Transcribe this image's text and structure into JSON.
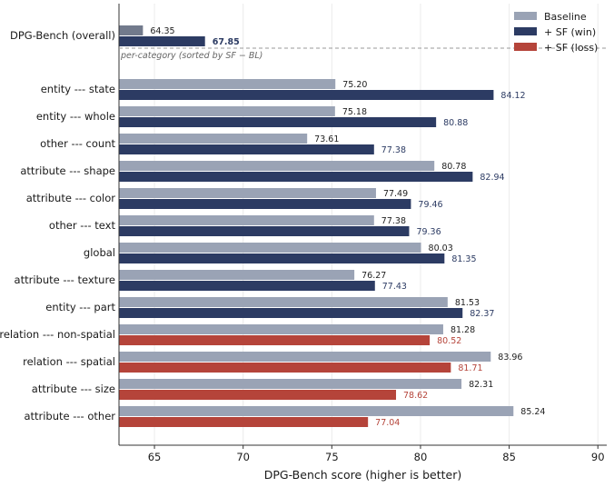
{
  "chart_data": {
    "type": "bar",
    "orientation": "horizontal",
    "xlabel": "DPG-Bench score (higher is better)",
    "xlim": [
      63,
      90.5
    ],
    "xticks": [
      65,
      70,
      75,
      80,
      85,
      90
    ],
    "grid": "vertical",
    "legend": {
      "placement": "top-right",
      "entries": [
        {
          "label": "Baseline",
          "color": "#9aa3b5"
        },
        {
          "label": "+ SF (win)",
          "color": "#2c3b63"
        },
        {
          "label": "+ SF (loss)",
          "color": "#b5443a"
        }
      ]
    },
    "overall": {
      "category": "DPG-Bench (overall)",
      "baseline": 64.35,
      "sf": 67.85,
      "baseline_color": "#727a8c"
    },
    "section_note": "per-category (sorted by SF − BL)",
    "categories": [
      "entity --- state",
      "entity --- whole",
      "other --- count",
      "attribute --- shape",
      "attribute --- color",
      "other --- text",
      "global",
      "attribute --- texture",
      "entity --- part",
      "relation --- non-spatial",
      "relation --- spatial",
      "attribute --- size",
      "attribute --- other"
    ],
    "series": [
      {
        "name": "Baseline",
        "values": [
          75.2,
          75.18,
          73.61,
          80.78,
          77.49,
          77.38,
          80.03,
          76.27,
          81.53,
          81.28,
          83.96,
          82.31,
          85.24
        ]
      },
      {
        "name": "+ SF",
        "values": [
          84.12,
          80.88,
          77.38,
          82.94,
          79.46,
          79.36,
          81.35,
          77.43,
          82.37,
          80.52,
          81.71,
          78.62,
          77.04
        ]
      }
    ],
    "value_labels": {
      "baseline": [
        "75.20",
        "75.18",
        "73.61",
        "80.78",
        "77.49",
        "77.38",
        "80.03",
        "76.27",
        "81.53",
        "81.28",
        "83.96",
        "82.31",
        "85.24"
      ],
      "sf": [
        "84.12",
        "80.88",
        "77.38",
        "82.94",
        "79.46",
        "79.36",
        "81.35",
        "77.43",
        "82.37",
        "80.52",
        "81.71",
        "78.62",
        "77.04"
      ],
      "overall_baseline": "64.35",
      "overall_sf": "67.85"
    },
    "colors": {
      "baseline": "#9aa3b5",
      "win": "#2c3b63",
      "loss": "#b5443a",
      "win_text": "#2c3b63",
      "loss_text": "#b5443a",
      "baseline_text": "#222222"
    }
  }
}
